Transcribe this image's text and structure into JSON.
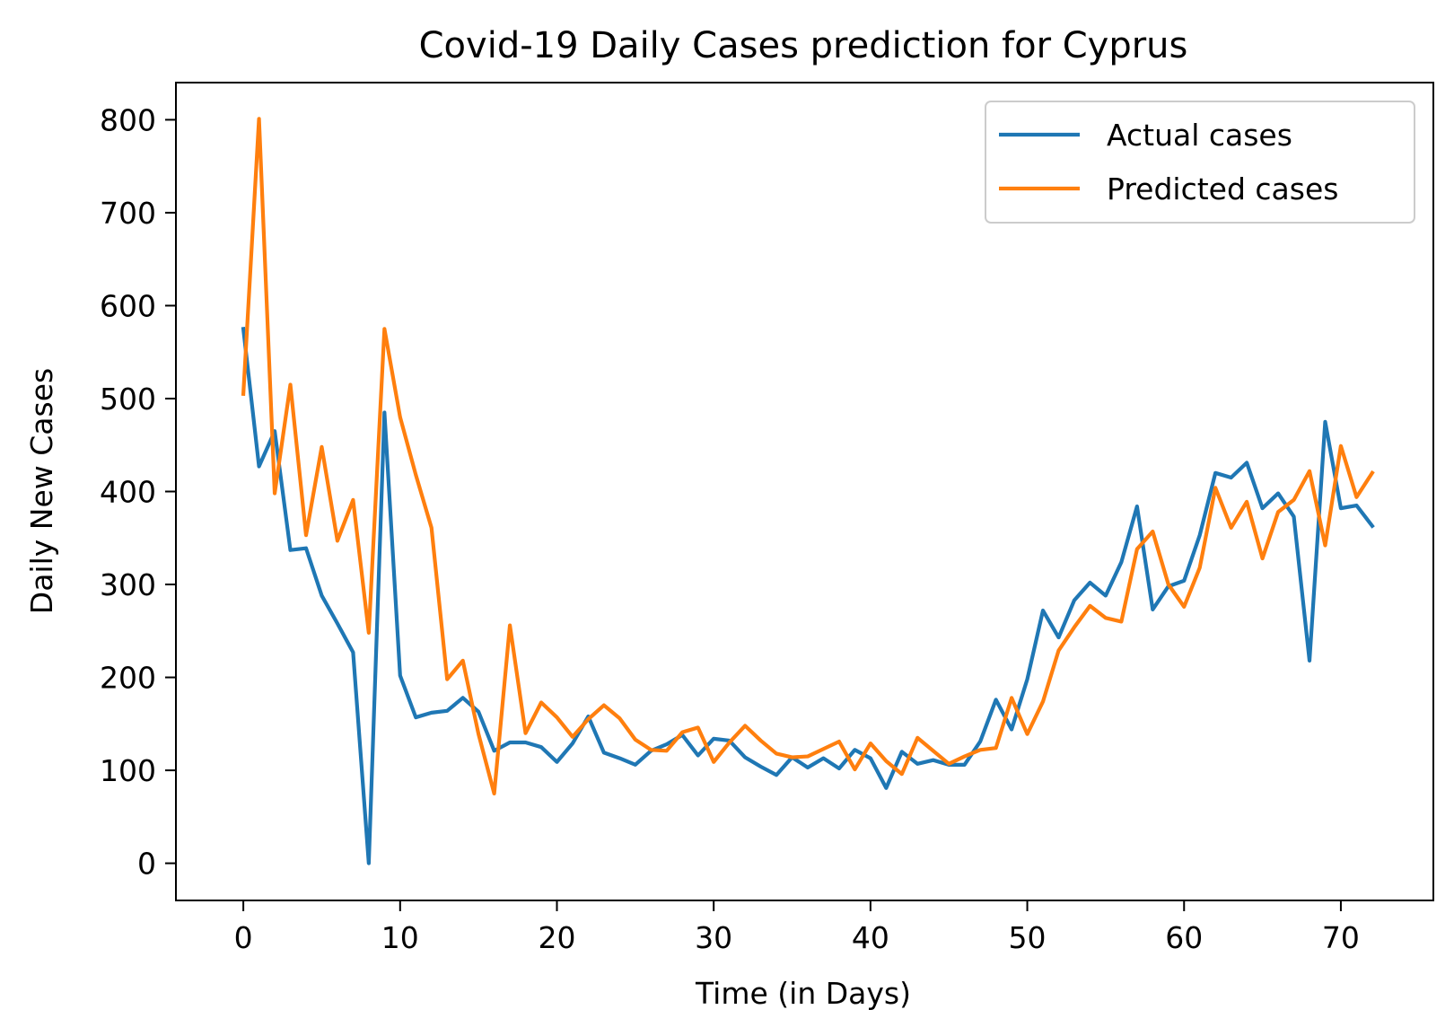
{
  "chart_data": {
    "type": "line",
    "title": "Covid-19 Daily Cases prediction for Cyprus",
    "xlabel": "Time (in Days)",
    "ylabel": "Daily New Cases",
    "xlim": [
      -4.3,
      75.9
    ],
    "ylim": [
      -40,
      840
    ],
    "xticks": [
      0,
      10,
      20,
      30,
      40,
      50,
      60,
      70
    ],
    "yticks": [
      0,
      100,
      200,
      300,
      400,
      500,
      600,
      700,
      800
    ],
    "xtick_labels": [
      "0",
      "10",
      "20",
      "30",
      "40",
      "50",
      "60",
      "70"
    ],
    "ytick_labels": [
      "0",
      "100",
      "200",
      "300",
      "400",
      "500",
      "600",
      "700",
      "800"
    ],
    "grid": false,
    "legend_position": "top-right",
    "series": [
      {
        "name": "Actual cases",
        "color": "#1f77b4",
        "values": [
          575,
          427,
          465,
          337,
          339,
          288,
          258,
          227,
          0,
          485,
          202,
          157,
          162,
          164,
          178,
          163,
          121,
          130,
          130,
          125,
          109,
          129,
          158,
          119,
          113,
          106,
          121,
          128,
          138,
          116,
          134,
          132,
          114,
          104,
          95,
          114,
          103,
          113,
          102,
          122,
          113,
          81,
          120,
          107,
          111,
          106,
          106,
          131,
          176,
          144,
          198,
          272,
          243,
          283,
          302,
          288,
          324,
          384,
          273,
          298,
          304,
          353,
          420,
          415,
          431,
          382,
          398,
          373,
          218,
          475,
          382,
          385,
          363
        ]
      },
      {
        "name": "Predicted cases",
        "color": "#ff7f0e",
        "values": [
          505,
          801,
          398,
          515,
          353,
          448,
          347,
          391,
          248,
          575,
          480,
          418,
          361,
          198,
          218,
          139,
          75,
          256,
          140,
          173,
          157,
          136,
          155,
          170,
          156,
          133,
          122,
          121,
          141,
          146,
          109,
          130,
          148,
          132,
          118,
          114,
          115,
          123,
          131,
          101,
          129,
          110,
          96,
          135,
          121,
          107,
          115,
          122,
          124,
          178,
          139,
          174,
          229,
          254,
          277,
          264,
          260,
          338,
          357,
          300,
          276,
          318,
          404,
          361,
          389,
          328,
          378,
          391,
          422,
          342,
          449,
          394,
          420
        ]
      }
    ]
  }
}
